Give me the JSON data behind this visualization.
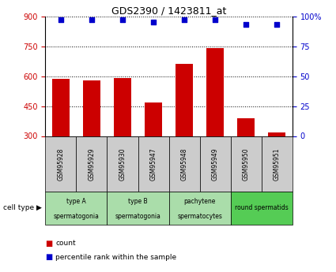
{
  "title": "GDS2390 / 1423811_at",
  "samples": [
    "GSM95928",
    "GSM95929",
    "GSM95930",
    "GSM95947",
    "GSM95948",
    "GSM95949",
    "GSM95950",
    "GSM95951"
  ],
  "counts": [
    585,
    578,
    592,
    468,
    660,
    740,
    388,
    318
  ],
  "percentile_ranks": [
    97,
    97,
    97,
    95,
    97,
    97,
    93,
    93
  ],
  "ylim_left": [
    300,
    900
  ],
  "ylim_right": [
    0,
    100
  ],
  "yticks_left": [
    300,
    450,
    600,
    750,
    900
  ],
  "yticks_right": [
    0,
    25,
    50,
    75,
    100
  ],
  "bar_color": "#cc0000",
  "scatter_color": "#0000cc",
  "bar_width": 0.55,
  "cell_groups": [
    {
      "label": "type A\nspermatogonia",
      "indices": [
        0,
        1
      ],
      "color": "#aaddaa"
    },
    {
      "label": "type B\nspermatogonia",
      "indices": [
        2,
        3
      ],
      "color": "#aaddaa"
    },
    {
      "label": "pachytene\nspermatocytes",
      "indices": [
        4,
        5
      ],
      "color": "#aaddaa"
    },
    {
      "label": "round spermatids",
      "indices": [
        6,
        7
      ],
      "color": "#55cc55"
    }
  ],
  "legend_count_color": "#cc0000",
  "legend_pct_color": "#0000cc",
  "ytick_color_left": "#cc0000",
  "ytick_color_right": "#0000cc",
  "grid_color": "#000000",
  "bg_color": "#ffffff",
  "sample_box_color": "#cccccc"
}
